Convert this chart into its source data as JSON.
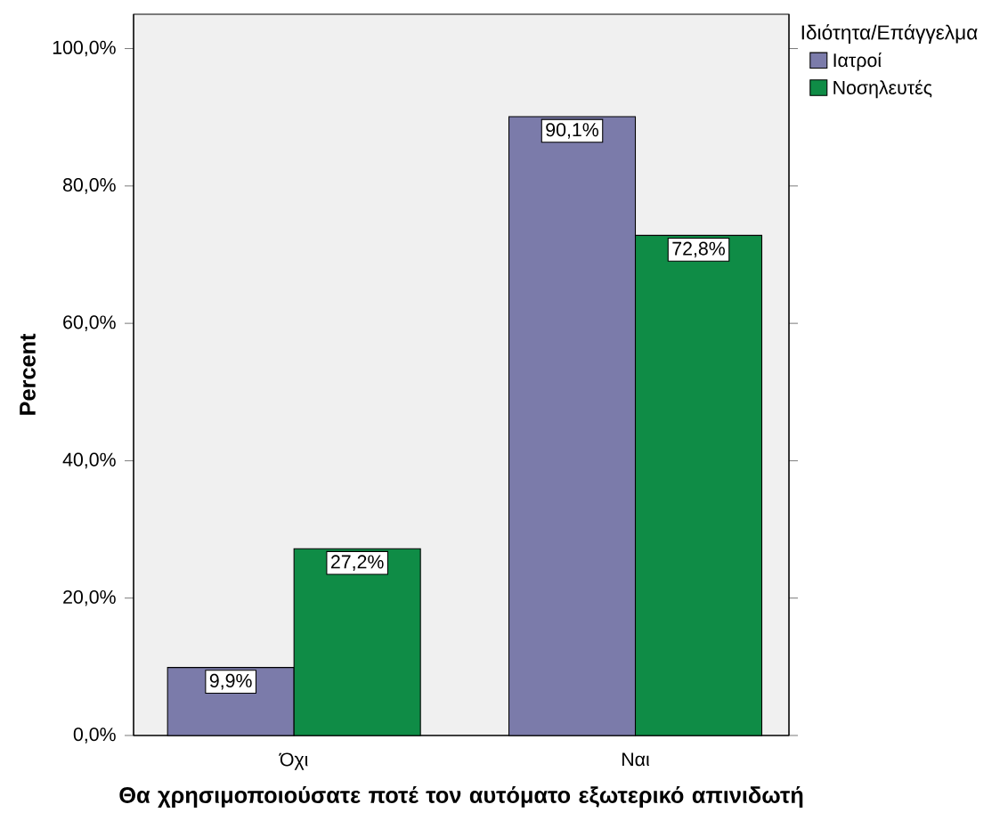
{
  "chart_data": {
    "type": "bar",
    "categories": [
      "Όχι",
      "Ναι"
    ],
    "xlabel": "Θα χρησιμοποιούσατε ποτέ τον αυτόματο εξωτερικό απινιδωτή",
    "ylabel": "Percent",
    "legend_title": "Ιδιότητα/Επάγγελμα",
    "legend": "top right",
    "ylim": [
      0,
      105
    ],
    "yticks": [
      {
        "value": 0,
        "label": "0,0%"
      },
      {
        "value": 20,
        "label": "20,0%"
      },
      {
        "value": 40,
        "label": "40,0%"
      },
      {
        "value": 60,
        "label": "60,0%"
      },
      {
        "value": 80,
        "label": "80,0%"
      },
      {
        "value": 100,
        "label": "100,0%"
      }
    ],
    "series": [
      {
        "name": "Ιατροί",
        "color": "#7b7baa",
        "values": [
          9.9,
          90.1
        ],
        "value_labels": [
          "9,9%",
          "90,1%"
        ]
      },
      {
        "name": "Νοσηλευτές",
        "color": "#0f8c46",
        "values": [
          27.2,
          72.8
        ],
        "value_labels": [
          "27,2%",
          "72,8%"
        ]
      }
    ]
  }
}
